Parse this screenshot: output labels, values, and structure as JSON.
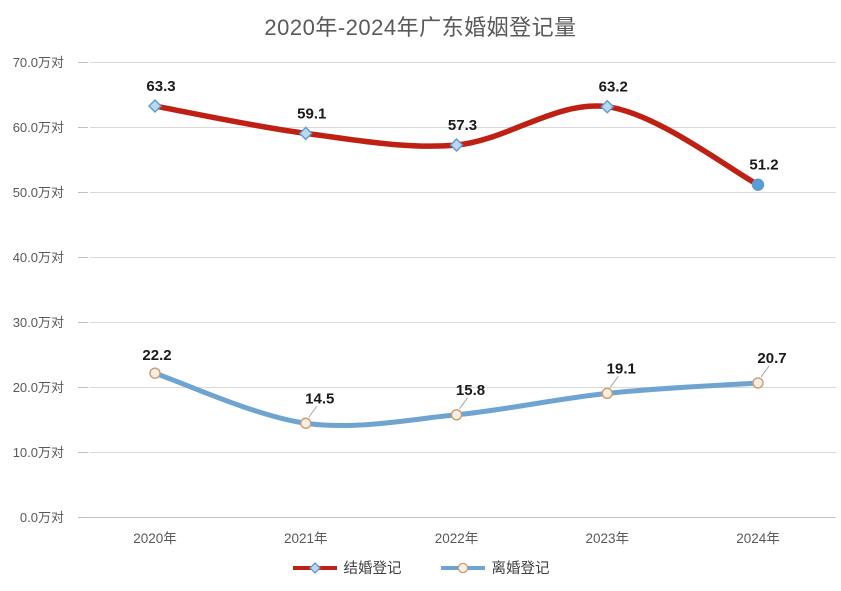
{
  "chart_data": {
    "type": "line",
    "title": "2020年-2024年广东婚姻登记量",
    "categories": [
      "2020年",
      "2021年",
      "2022年",
      "2023年",
      "2024年"
    ],
    "series": [
      {
        "name": "结婚登记",
        "color": "#BE2114",
        "values": [
          63.3,
          59.1,
          57.3,
          63.2,
          51.2
        ],
        "data_labels": [
          "63.3",
          "59.1",
          "57.3",
          "63.2",
          "51.2"
        ],
        "marker": {
          "shape": "diamond",
          "fill": "#BDD7EE",
          "stroke": "#5B9BD5"
        },
        "last_point_marker": {
          "shape": "circle",
          "fill": "#5B9BD5",
          "stroke": "#5B9BD5"
        },
        "label_leader_lines": [
          false,
          false,
          false,
          false,
          false
        ]
      },
      {
        "name": "离婚登记",
        "color": "#6FA4D1",
        "values": [
          22.2,
          14.5,
          15.8,
          19.1,
          20.7
        ],
        "data_labels": [
          "22.2",
          "14.5",
          "15.8",
          "19.1",
          "20.7"
        ],
        "marker": {
          "shape": "circle",
          "fill": "#F5EFE6",
          "stroke": "#CE9C6E"
        },
        "label_leader_lines": [
          false,
          true,
          true,
          true,
          true
        ]
      }
    ],
    "y_axis": {
      "min": 0,
      "max": 70,
      "step": 10,
      "unit": "万对",
      "tick_labels": [
        "0.0万对",
        "10.0万对",
        "20.0万对",
        "30.0万对",
        "40.0万对",
        "50.0万对",
        "60.0万对",
        "70.0万对"
      ]
    },
    "grid": true,
    "legend_position": "bottom",
    "smooth_lines": true
  },
  "style_colors": {
    "gridline": "#D9D9D9",
    "axis_tick": "#BFBFBF",
    "axis_line": "#C8C8C8",
    "axis_text": "#595959",
    "title_text": "#595959",
    "legend_text": "#404040",
    "data_label_text": "#1A1A1A",
    "leader_line": "#A6A6A6",
    "background": "#FFFFFF"
  }
}
